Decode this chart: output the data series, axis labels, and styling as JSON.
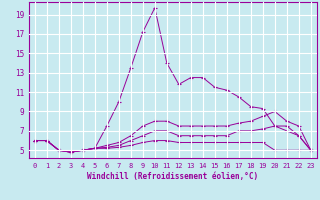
{
  "xlabel": "Windchill (Refroidissement éolien,°C)",
  "background_color": "#c8eaf0",
  "grid_color": "#ffffff",
  "line_color": "#990099",
  "x_ticks": [
    0,
    1,
    2,
    3,
    4,
    5,
    6,
    7,
    8,
    9,
    10,
    11,
    12,
    13,
    14,
    15,
    16,
    17,
    18,
    19,
    20,
    21,
    22,
    23
  ],
  "y_ticks": [
    5,
    7,
    9,
    11,
    13,
    15,
    17,
    19
  ],
  "xlim": [
    -0.5,
    23.5
  ],
  "ylim": [
    4.2,
    20.3
  ],
  "series": [
    [
      6,
      6,
      5,
      4.8,
      5,
      5.2,
      7.5,
      10,
      13.5,
      17.2,
      19.7,
      14,
      11.8,
      12.5,
      12.5,
      11.5,
      11.2,
      10.5,
      9.5,
      9.3,
      7.5,
      7,
      6.5,
      5
    ],
    [
      6,
      6,
      5,
      4.8,
      5,
      5.2,
      5.5,
      5.8,
      6.5,
      7.5,
      8,
      8,
      7.5,
      7.5,
      7.5,
      7.5,
      7.5,
      7.8,
      8,
      8.5,
      9,
      8,
      7.5,
      5
    ],
    [
      6,
      6,
      5,
      4.8,
      5,
      5.2,
      5.3,
      5.5,
      6,
      6.5,
      7,
      7,
      6.5,
      6.5,
      6.5,
      6.5,
      6.5,
      7,
      7,
      7.2,
      7.5,
      7.5,
      6.5,
      5
    ],
    [
      6,
      6,
      5,
      4.8,
      5,
      5.2,
      5.2,
      5.3,
      5.5,
      5.8,
      6,
      6,
      5.8,
      5.8,
      5.8,
      5.8,
      5.8,
      5.8,
      5.8,
      5.8,
      5,
      5,
      5,
      5
    ]
  ]
}
